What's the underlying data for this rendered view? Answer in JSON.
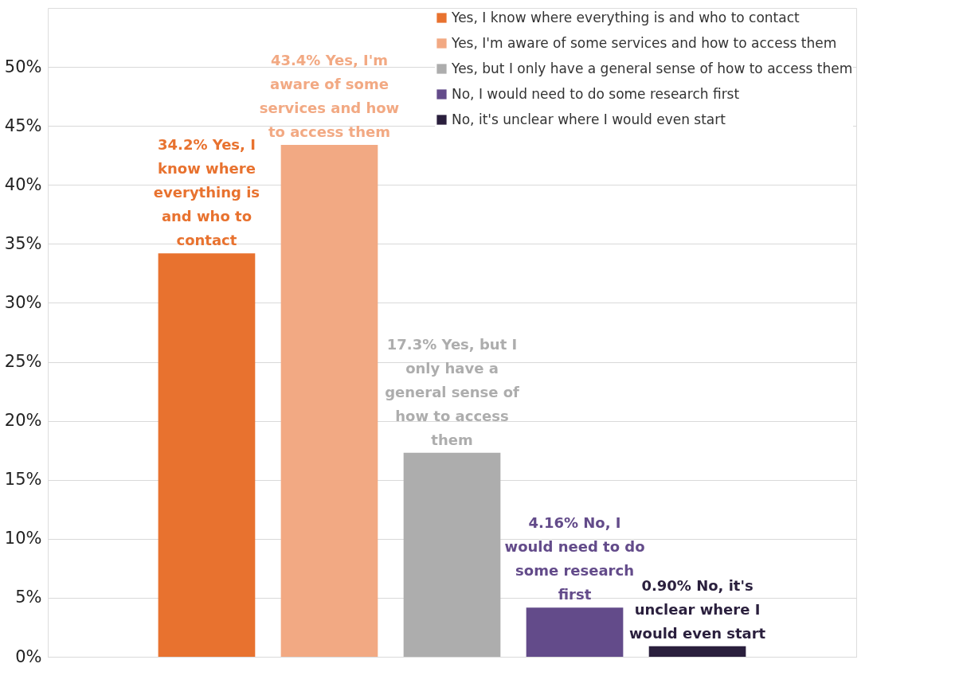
{
  "chart_data": {
    "type": "bar",
    "categories": [
      null,
      null,
      null,
      null,
      null
    ],
    "series": [
      {
        "name": "Yes, I know where everything is and who to contact",
        "color": "#e8722f",
        "values": [
          34.2,
          null,
          null,
          null,
          null
        ],
        "value_labels": [
          "34.2% Yes, I know where everything is and who to contact",
          null,
          null,
          null,
          null
        ]
      },
      {
        "name": "Yes, I'm aware of some services and how to access them",
        "color": "#f2a983",
        "values": [
          null,
          43.4,
          null,
          null,
          null
        ],
        "value_labels": [
          null,
          "43.4% Yes, I'm aware of some services and how to access them",
          null,
          null,
          null
        ]
      },
      {
        "name": "Yes, but I only have a general sense of how to access them",
        "color": "#adadad",
        "values": [
          null,
          null,
          17.3,
          null,
          null
        ],
        "value_labels": [
          null,
          null,
          "17.3% Yes, but I only have a general sense of how to access them",
          null,
          null
        ]
      },
      {
        "name": "No, I would need to do some research first",
        "color": "#634b8a",
        "values": [
          null,
          null,
          null,
          4.16,
          null
        ],
        "value_labels": [
          null,
          null,
          null,
          "4.16% No, I would need to do some research first",
          null
        ]
      },
      {
        "name": "No, it's unclear where I would even start",
        "color": "#2a1f3d",
        "values": [
          null,
          null,
          null,
          null,
          0.9
        ],
        "value_labels": [
          null,
          null,
          null,
          null,
          "0.90% No, it's unclear where I would even start"
        ]
      }
    ],
    "ylim": [
      0,
      55
    ],
    "yticks": [
      {
        "value": 0,
        "label": "0%"
      },
      {
        "value": 5,
        "label": "5%"
      },
      {
        "value": 10,
        "label": "10%"
      },
      {
        "value": 15,
        "label": "15%"
      },
      {
        "value": 20,
        "label": "20%"
      },
      {
        "value": 25,
        "label": "25%"
      },
      {
        "value": 30,
        "label": "30%"
      },
      {
        "value": 35,
        "label": "35%"
      },
      {
        "value": 40,
        "label": "40%"
      },
      {
        "value": 45,
        "label": "45%"
      },
      {
        "value": 50,
        "label": "50%"
      }
    ],
    "grid": "y",
    "legend": "top right",
    "tick_labels": "y"
  }
}
